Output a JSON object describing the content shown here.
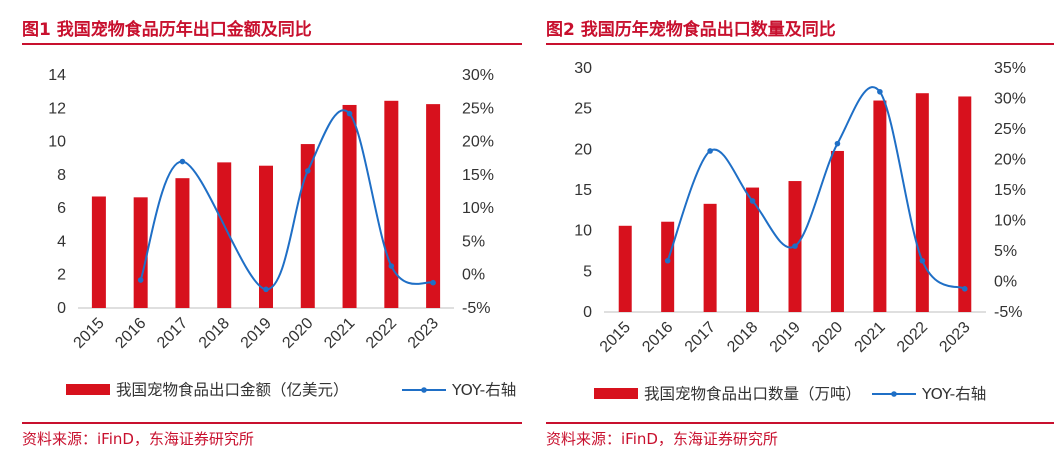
{
  "charts": [
    {
      "figure_title": "图1  我国宠物食品历年出口金额及同比",
      "source": "资料来源：iFinD，东海证券研究所"
    },
    {
      "figure_title": "图2  我国历年宠物食品出口数量及同比",
      "source": "资料来源：iFinD，东海证券研究所"
    }
  ],
  "colors": {
    "accent": "#c8102e",
    "bar": "#d7111d",
    "line": "#1f6fc6"
  },
  "chart_data": [
    {
      "type": "bar",
      "title": "",
      "categories": [
        "2015",
        "2016",
        "2017",
        "2018",
        "2019",
        "2020",
        "2021",
        "2022",
        "2023"
      ],
      "series": [
        {
          "name": "我国宠物食品出口金额（亿美元）",
          "axis": "left",
          "values": [
            6.7,
            6.65,
            7.8,
            8.75,
            8.55,
            9.85,
            12.2,
            12.45,
            12.25
          ]
        },
        {
          "name": "YOY-右轴",
          "type": "line",
          "axis": "right",
          "values": [
            null,
            -0.8,
            17,
            null,
            -2.2,
            15.6,
            24.2,
            1.3,
            -1.2
          ]
        }
      ],
      "y_left": {
        "range": [
          0,
          14
        ],
        "ticks": [
          0,
          2,
          4,
          6,
          8,
          10,
          12,
          14
        ],
        "tick_labels": [
          "0",
          "2",
          "4",
          "6",
          "8",
          "10",
          "12",
          "14"
        ]
      },
      "y_right": {
        "range": [
          -5,
          30
        ],
        "ticks": [
          -5,
          0,
          5,
          10,
          15,
          20,
          25,
          30
        ],
        "tick_labels": [
          "-5%",
          "0%",
          "5%",
          "10%",
          "15%",
          "20%",
          "25%",
          "30%"
        ]
      },
      "grid": false,
      "legend": "bottom"
    },
    {
      "type": "bar",
      "title": "",
      "categories": [
        "2015",
        "2016",
        "2017",
        "2018",
        "2019",
        "2020",
        "2021",
        "2022",
        "2023"
      ],
      "series": [
        {
          "name": "我国宠物食品出口数量（万吨）",
          "axis": "left",
          "values": [
            10.6,
            11.1,
            13.3,
            15.3,
            16.1,
            19.8,
            26.0,
            26.9,
            26.5
          ]
        },
        {
          "name": "YOY-右轴",
          "type": "line",
          "axis": "right",
          "values": [
            null,
            3.4,
            21.4,
            13.2,
            5.8,
            22.6,
            31.1,
            3.4,
            -1.2
          ]
        }
      ],
      "y_left": {
        "range": [
          0,
          30
        ],
        "ticks": [
          0,
          5,
          10,
          15,
          20,
          25,
          30
        ],
        "tick_labels": [
          "0",
          "5",
          "10",
          "15",
          "20",
          "25",
          "30"
        ]
      },
      "y_right": {
        "range": [
          -5,
          35
        ],
        "ticks": [
          -5,
          0,
          5,
          10,
          15,
          20,
          25,
          30,
          35
        ],
        "tick_labels": [
          "-5%",
          "0%",
          "5%",
          "10%",
          "15%",
          "20%",
          "25%",
          "30%",
          "35%"
        ]
      },
      "grid": false,
      "legend": "bottom"
    }
  ]
}
